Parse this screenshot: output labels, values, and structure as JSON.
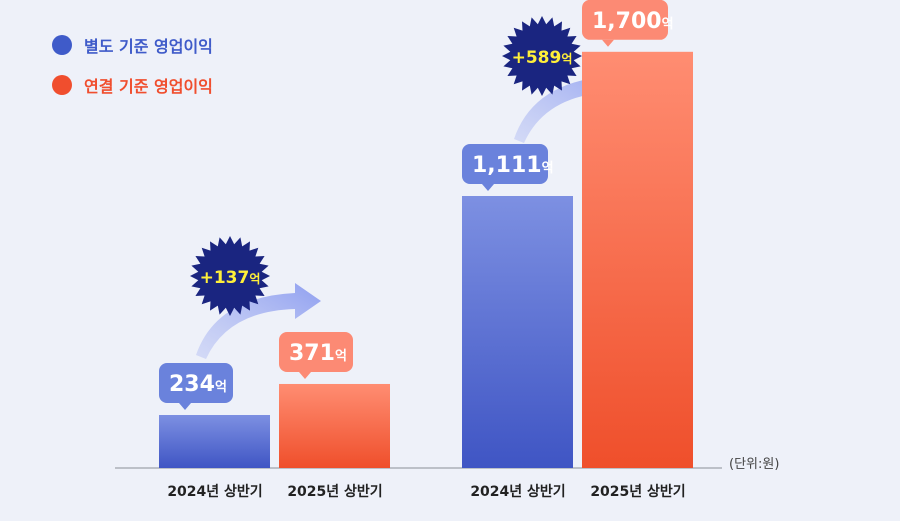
{
  "legend": [
    {
      "label": "별도 기준 영업이익",
      "color": "#3f5bc9"
    },
    {
      "label": "연결 기준 영업이익",
      "color": "#f04e2e"
    }
  ],
  "unit": "(단위:원)",
  "chart_data": {
    "type": "bar",
    "groups": [
      {
        "categories": [
          "2024년 상반기",
          "2025년 상반기"
        ],
        "values": [
          234,
          371
        ],
        "value_labels": [
          "234",
          "371"
        ],
        "diff_label": "+137"
      },
      {
        "categories": [
          "2024년 상반기",
          "2025년 상반기"
        ],
        "values": [
          1111,
          1700
        ],
        "value_labels": [
          "1,111",
          "1,700"
        ],
        "diff_label": "+589"
      }
    ],
    "series": [
      {
        "name": "별도 기준 영업이익"
      },
      {
        "name": "연결 기준 영업이익"
      }
    ],
    "value_suffix": "억",
    "unit": "(단위:원)",
    "xlabel": "",
    "ylabel": ""
  }
}
